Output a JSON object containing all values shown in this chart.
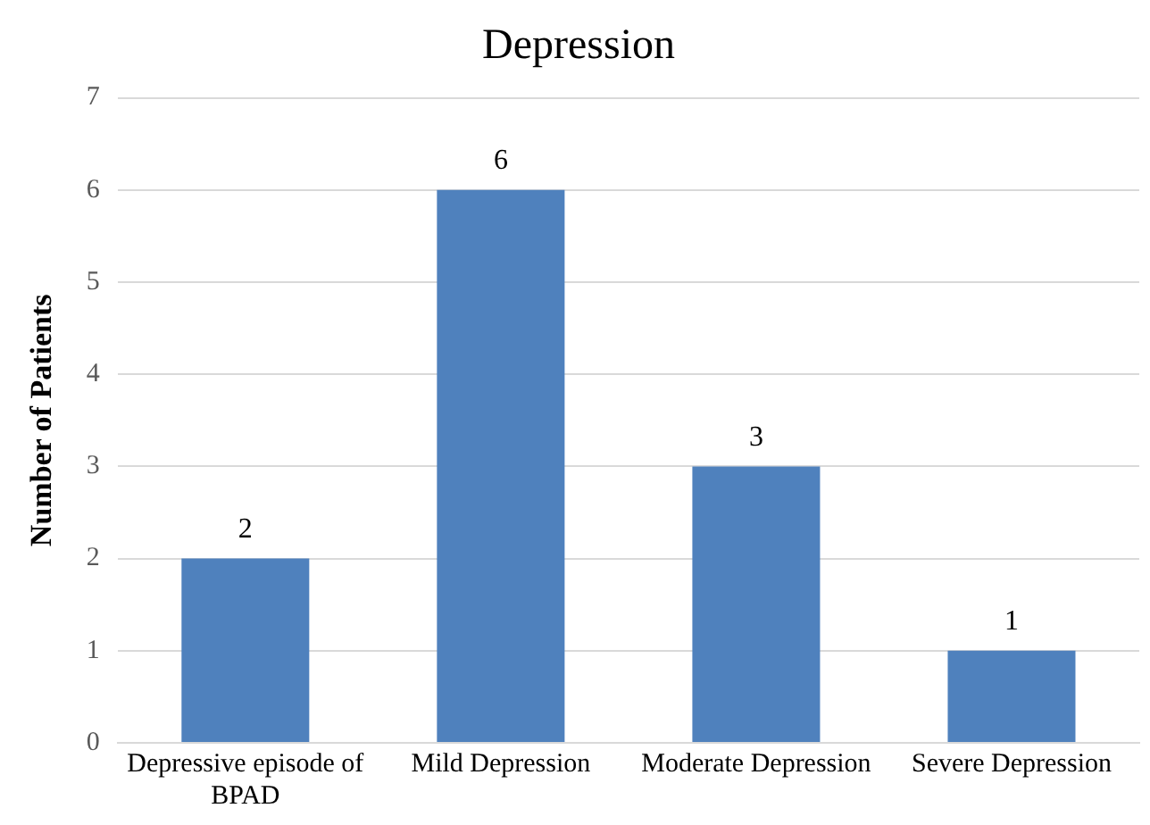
{
  "chart_data": {
    "type": "bar",
    "title": "Depression",
    "ylabel": "Number of Patients",
    "categories": [
      "Depressive episode of BPAD",
      "Mild Depression",
      "Moderate Depression",
      "Severe Depression"
    ],
    "values": [
      2,
      6,
      3,
      1
    ],
    "color": "#4f81bd",
    "ylim": [
      0,
      7
    ],
    "yticks": [
      0,
      1,
      2,
      3,
      4,
      5,
      6,
      7
    ],
    "grid": "y",
    "legend": false,
    "data_labels": true
  }
}
